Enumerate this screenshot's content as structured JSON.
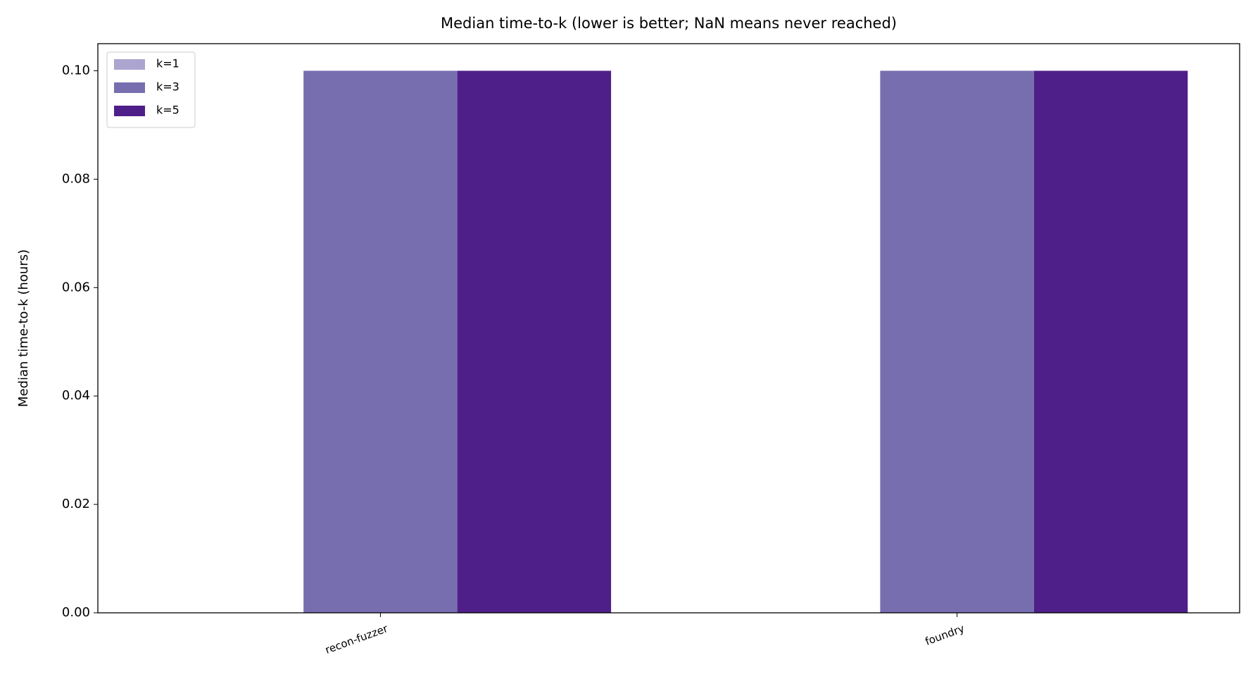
{
  "chart_data": {
    "type": "bar",
    "title": "Median time-to-k (lower is better; NaN means never reached)",
    "ylabel": "Median time-to-k (hours)",
    "categories": [
      "recon-fuzzer",
      "foundry"
    ],
    "series": [
      {
        "name": "k=1",
        "color": "#aba5d0",
        "values": [
          null,
          null
        ]
      },
      {
        "name": "k=3",
        "color": "#776eb0",
        "values": [
          0.1,
          0.1
        ]
      },
      {
        "name": "k=5",
        "color": "#4f1f89",
        "values": [
          0.1,
          0.1
        ]
      }
    ],
    "ylim": [
      0,
      0.105
    ],
    "yticks": [
      {
        "value": 0,
        "label": "0.00"
      },
      {
        "value": 0.02,
        "label": "0.02"
      },
      {
        "value": 0.04,
        "label": "0.04"
      },
      {
        "value": 0.06,
        "label": "0.06"
      },
      {
        "value": 0.08,
        "label": "0.08"
      },
      {
        "value": 0.1,
        "label": "0.10"
      }
    ],
    "legend": "upper left"
  }
}
